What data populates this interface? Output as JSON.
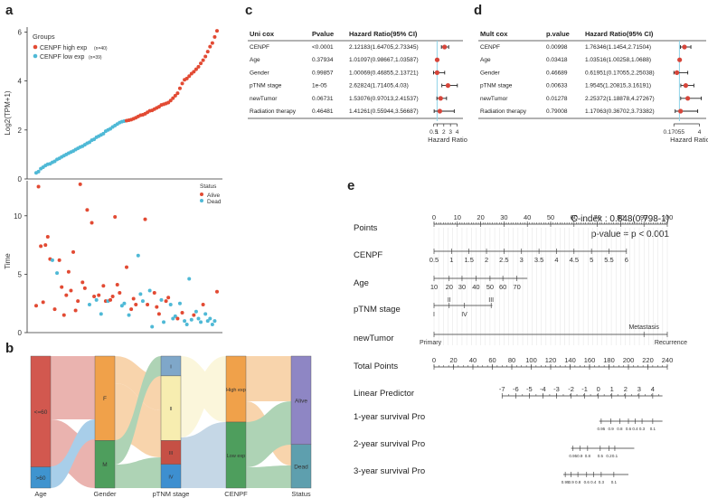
{
  "panel_letters": {
    "a": "a",
    "b": "b",
    "c": "c",
    "d": "d",
    "e": "e"
  },
  "colors": {
    "high": "#E24A33",
    "low": "#4FB9D6",
    "alive": "#E24A33",
    "dead": "#4FB9D6",
    "age_lt60": "#D2584F",
    "age_gt60": "#3F94CF",
    "gender_f": "#F0A14A",
    "gender_m": "#4E9E5D",
    "stage_i": "#7FA7C9",
    "stage_ii": "#F7EDB0",
    "stage_iii": "#C65045",
    "stage_iv": "#3D8FD0",
    "status_alive": "#8E86C4",
    "status_dead": "#5E9FAE"
  },
  "chart_data": [
    {
      "type": "scatter",
      "name": "expression-rank",
      "ylabel": "Log2(TPM+1)",
      "ylim": [
        0,
        6.2
      ],
      "yticks": [
        0,
        2,
        4,
        6
      ],
      "legend_title": "Groups",
      "legend": [
        {
          "label": "CENPF high exp",
          "note": "(n=40)"
        },
        {
          "label": "CENPF low exp",
          "note": "(n=39)"
        }
      ],
      "low_values": [
        0.25,
        0.3,
        0.42,
        0.48,
        0.55,
        0.6,
        0.62,
        0.68,
        0.72,
        0.8,
        0.84,
        0.9,
        0.95,
        1.0,
        1.05,
        1.1,
        1.14,
        1.2,
        1.25,
        1.3,
        1.34,
        1.4,
        1.46,
        1.5,
        1.58,
        1.62,
        1.7,
        1.75,
        1.8,
        1.85,
        1.95,
        2.0,
        2.05,
        2.12,
        2.18,
        2.24,
        2.3,
        2.34,
        2.36
      ],
      "high_values": [
        2.38,
        2.4,
        2.42,
        2.46,
        2.5,
        2.55,
        2.6,
        2.62,
        2.66,
        2.72,
        2.78,
        2.8,
        2.85,
        2.9,
        2.95,
        3.02,
        3.05,
        3.08,
        3.12,
        3.2,
        3.3,
        3.4,
        3.5,
        3.7,
        3.9,
        4.05,
        4.1,
        4.2,
        4.3,
        4.38,
        4.48,
        4.58,
        4.72,
        4.85,
        5.0,
        5.2,
        5.4,
        5.55,
        5.8,
        6.05
      ]
    },
    {
      "type": "scatter",
      "name": "survival-time",
      "ylabel": "Time",
      "ylim": [
        0,
        13
      ],
      "yticks": [
        0,
        5,
        10
      ],
      "legend_title": "Status",
      "legend": [
        "Alive",
        "Dead"
      ],
      "points": [
        [
          1,
          2.3,
          "A"
        ],
        [
          2,
          12.5,
          "A"
        ],
        [
          3,
          7.4,
          "A"
        ],
        [
          4,
          2.6,
          "A"
        ],
        [
          5,
          7.5,
          "A"
        ],
        [
          6,
          8.2,
          "A"
        ],
        [
          7,
          6.3,
          "A"
        ],
        [
          8,
          6.2,
          "D"
        ],
        [
          9,
          2.0,
          "A"
        ],
        [
          10,
          5.1,
          "D"
        ],
        [
          11,
          6.2,
          "A"
        ],
        [
          12,
          3.9,
          "A"
        ],
        [
          13,
          1.5,
          "A"
        ],
        [
          14,
          3.2,
          "A"
        ],
        [
          15,
          5.2,
          "A"
        ],
        [
          16,
          3.6,
          "A"
        ],
        [
          17,
          6.9,
          "A"
        ],
        [
          18,
          1.9,
          "A"
        ],
        [
          19,
          2.7,
          "A"
        ],
        [
          20,
          12.7,
          "A"
        ],
        [
          21,
          4.3,
          "A"
        ],
        [
          22,
          3.8,
          "A"
        ],
        [
          23,
          10.5,
          "A"
        ],
        [
          24,
          2.4,
          "D"
        ],
        [
          25,
          9.4,
          "A"
        ],
        [
          26,
          3.1,
          "A"
        ],
        [
          27,
          2.8,
          "D"
        ],
        [
          28,
          3.2,
          "A"
        ],
        [
          29,
          1.6,
          "D"
        ],
        [
          30,
          4.0,
          "A"
        ],
        [
          31,
          2.7,
          "A"
        ],
        [
          32,
          2.7,
          "D"
        ],
        [
          33,
          2.8,
          "A"
        ],
        [
          34,
          3.1,
          "A"
        ],
        [
          35,
          9.9,
          "A"
        ],
        [
          36,
          4.1,
          "A"
        ],
        [
          37,
          3.4,
          "A"
        ],
        [
          38,
          2.3,
          "D"
        ],
        [
          39,
          2.5,
          "D"
        ],
        [
          40,
          5.6,
          "A"
        ],
        [
          41,
          1.5,
          "D"
        ],
        [
          42,
          2.0,
          "A"
        ],
        [
          43,
          2.9,
          "A"
        ],
        [
          44,
          2.4,
          "A"
        ],
        [
          45,
          6.6,
          "D"
        ],
        [
          46,
          3.3,
          "D"
        ],
        [
          47,
          2.7,
          "D"
        ],
        [
          48,
          9.7,
          "A"
        ],
        [
          49,
          2.4,
          "A"
        ],
        [
          50,
          3.6,
          "D"
        ],
        [
          51,
          0.5,
          "D"
        ],
        [
          52,
          3.4,
          "A"
        ],
        [
          53,
          2.2,
          "A"
        ],
        [
          54,
          1.6,
          "A"
        ],
        [
          55,
          2.8,
          "D"
        ],
        [
          56,
          0.9,
          "D"
        ],
        [
          57,
          2.7,
          "A"
        ],
        [
          58,
          3.0,
          "A"
        ],
        [
          59,
          2.4,
          "D"
        ],
        [
          60,
          1.2,
          "D"
        ],
        [
          61,
          1.4,
          "D"
        ],
        [
          62,
          1.2,
          "A"
        ],
        [
          63,
          2.5,
          "D"
        ],
        [
          64,
          1.7,
          "A"
        ],
        [
          65,
          1.0,
          "D"
        ],
        [
          66,
          0.7,
          "D"
        ],
        [
          67,
          4.6,
          "D"
        ],
        [
          68,
          1.1,
          "D"
        ],
        [
          69,
          1.5,
          "A"
        ],
        [
          70,
          1.8,
          "D"
        ],
        [
          71,
          1.2,
          "D"
        ],
        [
          72,
          0.9,
          "D"
        ],
        [
          73,
          2.4,
          "A"
        ],
        [
          74,
          1.6,
          "D"
        ],
        [
          75,
          1.0,
          "D"
        ],
        [
          76,
          1.2,
          "D"
        ],
        [
          77,
          0.7,
          "D"
        ],
        [
          78,
          1.0,
          "D"
        ],
        [
          79,
          3.5,
          "A"
        ]
      ]
    },
    {
      "type": "sankey",
      "name": "alluvial",
      "axes": [
        "Age",
        "Gender",
        "pTNM stage",
        "CENPF",
        "Status"
      ],
      "nodes": {
        "Age": [
          {
            "label": "<=60",
            "frac": 0.84
          },
          {
            "label": ">60",
            "frac": 0.16
          }
        ],
        "Gender": [
          {
            "label": "F",
            "frac": 0.64
          },
          {
            "label": "M",
            "frac": 0.36
          }
        ],
        "pTNM stage": [
          {
            "label": "I",
            "frac": 0.15
          },
          {
            "label": "II",
            "frac": 0.49
          },
          {
            "label": "III",
            "frac": 0.18
          },
          {
            "label": "IV",
            "frac": 0.18
          }
        ],
        "CENPF": [
          {
            "label": "High exp",
            "frac": 0.5
          },
          {
            "label": "Low exp",
            "frac": 0.5
          }
        ],
        "Status": [
          {
            "label": "Alive",
            "frac": 0.67
          },
          {
            "label": "Dead",
            "frac": 0.33
          }
        ]
      }
    },
    {
      "type": "forest",
      "name": "uni-cox",
      "headers": [
        "Uni cox",
        "Pvalue",
        "Hazard Ratio(95% CI)"
      ],
      "rows": [
        {
          "var": "CENPF",
          "p": "<0.0001",
          "hr": "2.12183(1.64705,2.73345)",
          "est": 2.12,
          "lo": 1.647,
          "hi": 2.733
        },
        {
          "var": "Age",
          "p": "0.37934",
          "hr": "1.01097(0.98667,1.03587)",
          "est": 1.011,
          "lo": 0.987,
          "hi": 1.036
        },
        {
          "var": "Gender",
          "p": "0.99857",
          "hr": "1.00069(0.46855,2.13721)",
          "est": 1.0,
          "lo": 0.469,
          "hi": 2.137
        },
        {
          "var": "pTNM stage",
          "p": "1e-05",
          "hr": "2.62824(1.71405,4.03)",
          "est": 2.63,
          "lo": 1.714,
          "hi": 4.03
        },
        {
          "var": "newTumor",
          "p": "0.06731",
          "hr": "1.53076(0.97013,2.41537)",
          "est": 1.53,
          "lo": 0.97,
          "hi": 2.415
        },
        {
          "var": "Radiation therapy",
          "p": "0.46481",
          "hr": "1.41261(0.55944,3.56687)",
          "est": 1.41,
          "lo": 0.559,
          "hi": 3.567
        }
      ],
      "ticks": [
        "0.5",
        "1",
        "2",
        "3",
        "4"
      ],
      "tick_values": [
        0.5,
        1,
        2,
        3,
        4
      ],
      "xlim": [
        0,
        4.6
      ],
      "xlabel": "Hazard Ratio"
    },
    {
      "type": "forest",
      "name": "mult-cox",
      "headers": [
        "Mult cox",
        "p.value",
        "Hazard Ratio(95% CI)"
      ],
      "rows": [
        {
          "var": "CENPF",
          "p": "0.00998",
          "hr": "1.76346(1.1454,2.71504)",
          "est": 1.76,
          "lo": 1.145,
          "hi": 2.715
        },
        {
          "var": "Age",
          "p": "0.03418",
          "hr": "1.03516(1.00258,1.0688)",
          "est": 1.035,
          "lo": 1.003,
          "hi": 1.069
        },
        {
          "var": "Gender",
          "p": "0.46689",
          "hr": "0.61951(0.17055,2.25038)",
          "est": 0.62,
          "lo": 0.171,
          "hi": 2.25
        },
        {
          "var": "pTNM stage",
          "p": "0.00633",
          "hr": "1.9545(1.20815,3.16191)",
          "est": 1.95,
          "lo": 1.208,
          "hi": 3.162
        },
        {
          "var": "newTumor",
          "p": "0.01278",
          "hr": "2.25372(1.18878,4.27267)",
          "est": 2.25,
          "lo": 1.189,
          "hi": 4.273
        },
        {
          "var": "Radiation therapy",
          "p": "0.79008",
          "hr": "1.17063(0.36702,3.73382)",
          "est": 1.17,
          "lo": 0.367,
          "hi": 3.734
        }
      ],
      "ticks": [
        "0.17055",
        "4"
      ],
      "tick_values": [
        0.17055,
        4
      ],
      "xlim": [
        0,
        4.6
      ],
      "xlabel": "Hazard Ratio"
    },
    {
      "type": "nomogram",
      "name": "nomogram",
      "cindex": "C-index : 0.848(0.798-1)",
      "pvalue": "p-value = p < 0.001",
      "rows": [
        {
          "label": "Points",
          "min": 0,
          "max": 100,
          "labels": [
            [
              "0",
              0
            ],
            [
              "10",
              10
            ],
            [
              "20",
              20
            ],
            [
              "30",
              30
            ],
            [
              "40",
              40
            ],
            [
              "50",
              50
            ],
            [
              "60",
              60
            ],
            [
              "70",
              70
            ],
            [
              "80",
              80
            ],
            [
              "90",
              90
            ],
            [
              "100",
              100
            ]
          ],
          "minor": 1
        },
        {
          "label": "CENPF",
          "min": 0,
          "max": 100,
          "from": 0,
          "to": 82.5,
          "labels": [
            [
              "0.5",
              0
            ],
            [
              "1",
              7.5
            ],
            [
              "1.5",
              15
            ],
            [
              "2",
              22.5
            ],
            [
              "2.5",
              30
            ],
            [
              "3",
              37.5
            ],
            [
              "3.5",
              45
            ],
            [
              "4",
              52.5
            ],
            [
              "4.5",
              60
            ],
            [
              "5",
              67.5
            ],
            [
              "5.5",
              75
            ],
            [
              "6",
              82.5
            ]
          ],
          "below": true
        },
        {
          "label": "Age",
          "min": 0,
          "max": 100,
          "from": 0,
          "to": 40,
          "labels": [
            [
              "10",
              0
            ],
            [
              "20",
              6.5
            ],
            [
              "30",
              12
            ],
            [
              "40",
              18
            ],
            [
              "50",
              24
            ],
            [
              "60",
              29.5
            ],
            [
              "70",
              35.5
            ]
          ],
          "below": true
        },
        {
          "label": "pTNM stage",
          "min": 0,
          "max": 100,
          "from": 0,
          "to": 25,
          "labels": [
            [
              "I",
              0
            ],
            [
              "II",
              6.5
            ],
            [
              "III",
              24.5
            ],
            [
              "IV",
              13
            ]
          ],
          "mixed": true
        },
        {
          "label": "newTumor",
          "min": 0,
          "max": 100,
          "from": 0,
          "to": 100,
          "labels": [
            [
              "Primary",
              0
            ],
            [
              "Metastasis",
              90
            ],
            [
              "Recurrence",
              100
            ]
          ],
          "cat": true
        },
        {
          "label": "Total Points",
          "min": 0,
          "max": 240,
          "labels": [
            [
              "0",
              0
            ],
            [
              "20",
              20
            ],
            [
              "40",
              40
            ],
            [
              "60",
              60
            ],
            [
              "80",
              80
            ],
            [
              "100",
              100
            ],
            [
              "120",
              120
            ],
            [
              "140",
              140
            ],
            [
              "160",
              160
            ],
            [
              "180",
              180
            ],
            [
              "200",
              200
            ],
            [
              "220",
              220
            ],
            [
              "240",
              240
            ]
          ],
          "minor": 5
        },
        {
          "label": "Linear Predictor",
          "min": 0,
          "max": 240,
          "from": 70,
          "to": 235,
          "labels": [
            [
              "-7",
              70
            ],
            [
              "-6",
              84
            ],
            [
              "-5",
              98
            ],
            [
              "-4",
              112
            ],
            [
              "-3",
              126
            ],
            [
              "-2",
              141
            ],
            [
              "-1",
              155
            ],
            [
              "0",
              169
            ],
            [
              "1",
              183
            ],
            [
              "2",
              197
            ],
            [
              "3",
              211
            ],
            [
              "4",
              225
            ]
          ],
          "minor": 7
        },
        {
          "label": "1-year survival Pro",
          "min": 0,
          "max": 240,
          "from": 170,
          "to": 235,
          "small": true,
          "labels": [
            [
              "0.95",
              172
            ],
            [
              "0.9",
              182
            ],
            [
              "0.8",
              191
            ],
            [
              "0.6",
              200
            ],
            [
              "0.4",
              207
            ],
            [
              "0.3",
              214
            ],
            [
              "0.1",
              225
            ]
          ]
        },
        {
          "label": "2-year survival Pro",
          "min": 0,
          "max": 240,
          "from": 141,
          "to": 206,
          "small": true,
          "labels": [
            [
              "0.95",
              143
            ],
            [
              "0.9",
              150
            ],
            [
              "0.8",
              158
            ],
            [
              "0.5",
              171
            ],
            [
              "0.2",
              180
            ],
            [
              "0.1",
              186
            ]
          ]
        },
        {
          "label": "3-year survival Pro",
          "min": 0,
          "max": 240,
          "from": 133,
          "to": 200,
          "small": true,
          "labels": [
            [
              "0.95",
              135
            ],
            [
              "0.9",
              141
            ],
            [
              "0.8",
              148
            ],
            [
              "0.6",
              157
            ],
            [
              "0.4",
              164
            ],
            [
              "0.3",
              172
            ],
            [
              "0.1",
              185
            ]
          ]
        }
      ]
    }
  ]
}
